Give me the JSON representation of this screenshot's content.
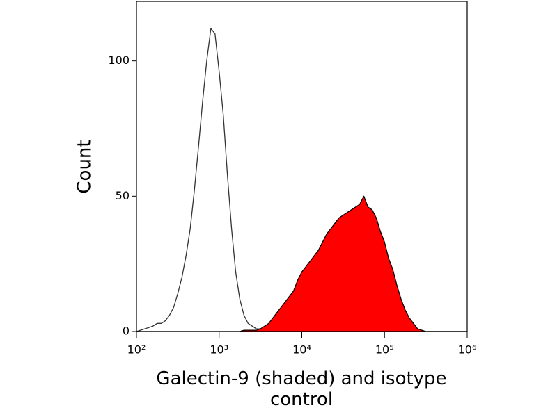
{
  "chart_data": {
    "type": "histogram-overlay",
    "xlabel": "Galectin-9 (shaded) and isotype control",
    "ylabel": "Count",
    "xscale": "log",
    "xlim": [
      100,
      1000000
    ],
    "ylim": [
      0,
      122
    ],
    "xticks": [
      {
        "value": 100,
        "label": "10²"
      },
      {
        "value": 1000,
        "label": "10³"
      },
      {
        "value": 10000,
        "label": "10⁴"
      },
      {
        "value": 100000,
        "label": "10⁵"
      },
      {
        "value": 1000000,
        "label": "10⁶"
      }
    ],
    "yticks": [
      0,
      50,
      100
    ],
    "x": [
      100,
      112,
      126,
      141,
      158,
      178,
      200,
      224,
      251,
      282,
      316,
      355,
      398,
      447,
      501,
      562,
      631,
      708,
      794,
      891,
      1000,
      1122,
      1259,
      1413,
      1585,
      1778,
      1995,
      2239,
      2512,
      2818,
      3162,
      3548,
      3981,
      4467,
      5012,
      5623,
      6310,
      7079,
      7943,
      8913,
      10000,
      11220,
      12589,
      14125,
      15849,
      17783,
      19953,
      22387,
      25119,
      28184,
      31623,
      35481,
      39811,
      44668,
      50119,
      56234,
      63096,
      70795,
      79433,
      89125,
      100000,
      112202,
      125893,
      141254,
      158489,
      177828,
      199526,
      223872,
      251189,
      281838,
      316228,
      354813,
      398107,
      446684,
      501187,
      562341,
      630957,
      707946,
      794328,
      891251,
      1000000
    ],
    "series": [
      {
        "color": "#333333",
        "fill": "none",
        "values": [
          0,
          0.5,
          1,
          1.5,
          2,
          3,
          3,
          4,
          6,
          9,
          14,
          20,
          28,
          38,
          52,
          68,
          85,
          100,
          112,
          110,
          96,
          80,
          58,
          38,
          22,
          12,
          6,
          3,
          2,
          1,
          1,
          0.5,
          0.5,
          0.3,
          0.2,
          0,
          0,
          0,
          0,
          0,
          0,
          0,
          0,
          0,
          0,
          0,
          0,
          0,
          0,
          0,
          0,
          0,
          0,
          0,
          0,
          0,
          0,
          0,
          0,
          0,
          0,
          0,
          0,
          0,
          0,
          0,
          0,
          0,
          0,
          0,
          0,
          0,
          0,
          0,
          0,
          0,
          0,
          0,
          0,
          0,
          0
        ]
      },
      {
        "color": "#000000",
        "fill": "#ff0000",
        "values": [
          0,
          0,
          0,
          0,
          0,
          0,
          0,
          0,
          0,
          0,
          0,
          0,
          0,
          0,
          0,
          0,
          0,
          0,
          0,
          0,
          0,
          0,
          0,
          0,
          0,
          0,
          0.5,
          0.5,
          0.5,
          0.5,
          1,
          2,
          3,
          5,
          7,
          9,
          11,
          13,
          15,
          19,
          22,
          24,
          26,
          28,
          30,
          33,
          36,
          38,
          40,
          42,
          43,
          44,
          45,
          46,
          47,
          50,
          46,
          45,
          42,
          37,
          33,
          27,
          23,
          17,
          12,
          8,
          5,
          3,
          1,
          0.5,
          0,
          0,
          0,
          0,
          0,
          0,
          0,
          0,
          0,
          0,
          0
        ]
      }
    ]
  }
}
